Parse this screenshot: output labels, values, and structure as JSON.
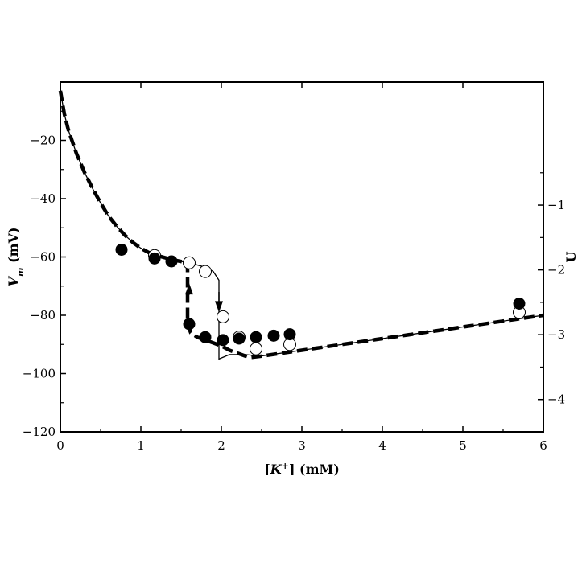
{
  "chart_data": {
    "type": "scatter",
    "xlim": [
      0,
      6
    ],
    "ylim": [
      -120,
      0
    ],
    "y2lim": [
      -4.5,
      0.9
    ],
    "x_ticks": [
      0,
      1,
      2,
      3,
      4,
      5,
      6
    ],
    "y_ticks": [
      -120,
      -100,
      -80,
      -60,
      -40,
      -20
    ],
    "y2_ticks": [
      -4,
      -3,
      -2,
      -1
    ],
    "xlabel": {
      "pre": "[",
      "var": "K",
      "sup": "+",
      "post": "] (mM)"
    },
    "ylabel": {
      "var": "V",
      "sub": "m",
      "post": " (mV)"
    },
    "y2label": "U",
    "grid": false,
    "legend": "none",
    "series": [
      {
        "kind": "filled-points",
        "x": [
          0.76,
          1.17,
          1.38,
          1.6,
          1.8,
          2.02,
          2.22,
          2.43,
          2.65,
          2.85,
          5.7
        ],
        "y": [
          -57.5,
          -60.5,
          -61.5,
          -83,
          -87.5,
          -88.5,
          -88,
          -87.5,
          -87,
          -86.5,
          -76
        ]
      },
      {
        "kind": "open-points",
        "x": [
          1.17,
          1.6,
          1.8,
          2.02,
          2.22,
          2.43,
          2.85,
          5.7
        ],
        "y": [
          -59.5,
          -62,
          -65,
          -80.5,
          -87.5,
          -91.5,
          -90,
          -79
        ]
      },
      {
        "kind": "thin-line",
        "x": [
          0,
          0.05,
          0.1,
          0.2,
          0.3,
          0.4,
          0.5,
          0.6,
          0.7,
          0.8,
          0.9,
          1.0,
          1.1,
          1.2,
          1.4,
          1.6,
          1.8,
          1.9,
          1.97,
          1.97,
          2.1,
          2.3,
          2.48,
          3,
          4,
          5,
          6
        ],
        "y": [
          -3,
          -11,
          -16.5,
          -24.5,
          -31,
          -36.5,
          -41.5,
          -46,
          -49.5,
          -52.5,
          -55,
          -57,
          -58.5,
          -59.5,
          -61,
          -62,
          -63.5,
          -65,
          -68,
          -95,
          -93.5,
          -93.5,
          -94,
          -92,
          -88,
          -84,
          -80
        ]
      },
      {
        "kind": "dashed-line",
        "x": [
          0,
          0.05,
          0.1,
          0.2,
          0.3,
          0.4,
          0.5,
          0.6,
          0.7,
          0.8,
          0.9,
          1.0,
          1.1,
          1.2,
          1.4,
          1.58,
          1.58,
          1.62,
          1.7,
          1.8,
          1.9,
          2.0,
          2.1,
          2.2,
          2.35,
          2.5,
          3,
          4,
          5,
          6
        ],
        "y": [
          -3,
          -11,
          -16.5,
          -24.5,
          -31,
          -36.5,
          -41.5,
          -46,
          -49.5,
          -52.5,
          -55,
          -57,
          -58.5,
          -59.5,
          -61,
          -62,
          -83,
          -86,
          -87.5,
          -88.5,
          -89.5,
          -90.5,
          -92,
          -93,
          -94.5,
          -94,
          -92,
          -88,
          -84,
          -80
        ]
      }
    ],
    "arrows": [
      {
        "direction": "up",
        "x": 1.6,
        "y_from": -73,
        "y_to": -69
      },
      {
        "direction": "down",
        "x": 1.97,
        "y_from": -72,
        "y_to": -79
      }
    ]
  }
}
